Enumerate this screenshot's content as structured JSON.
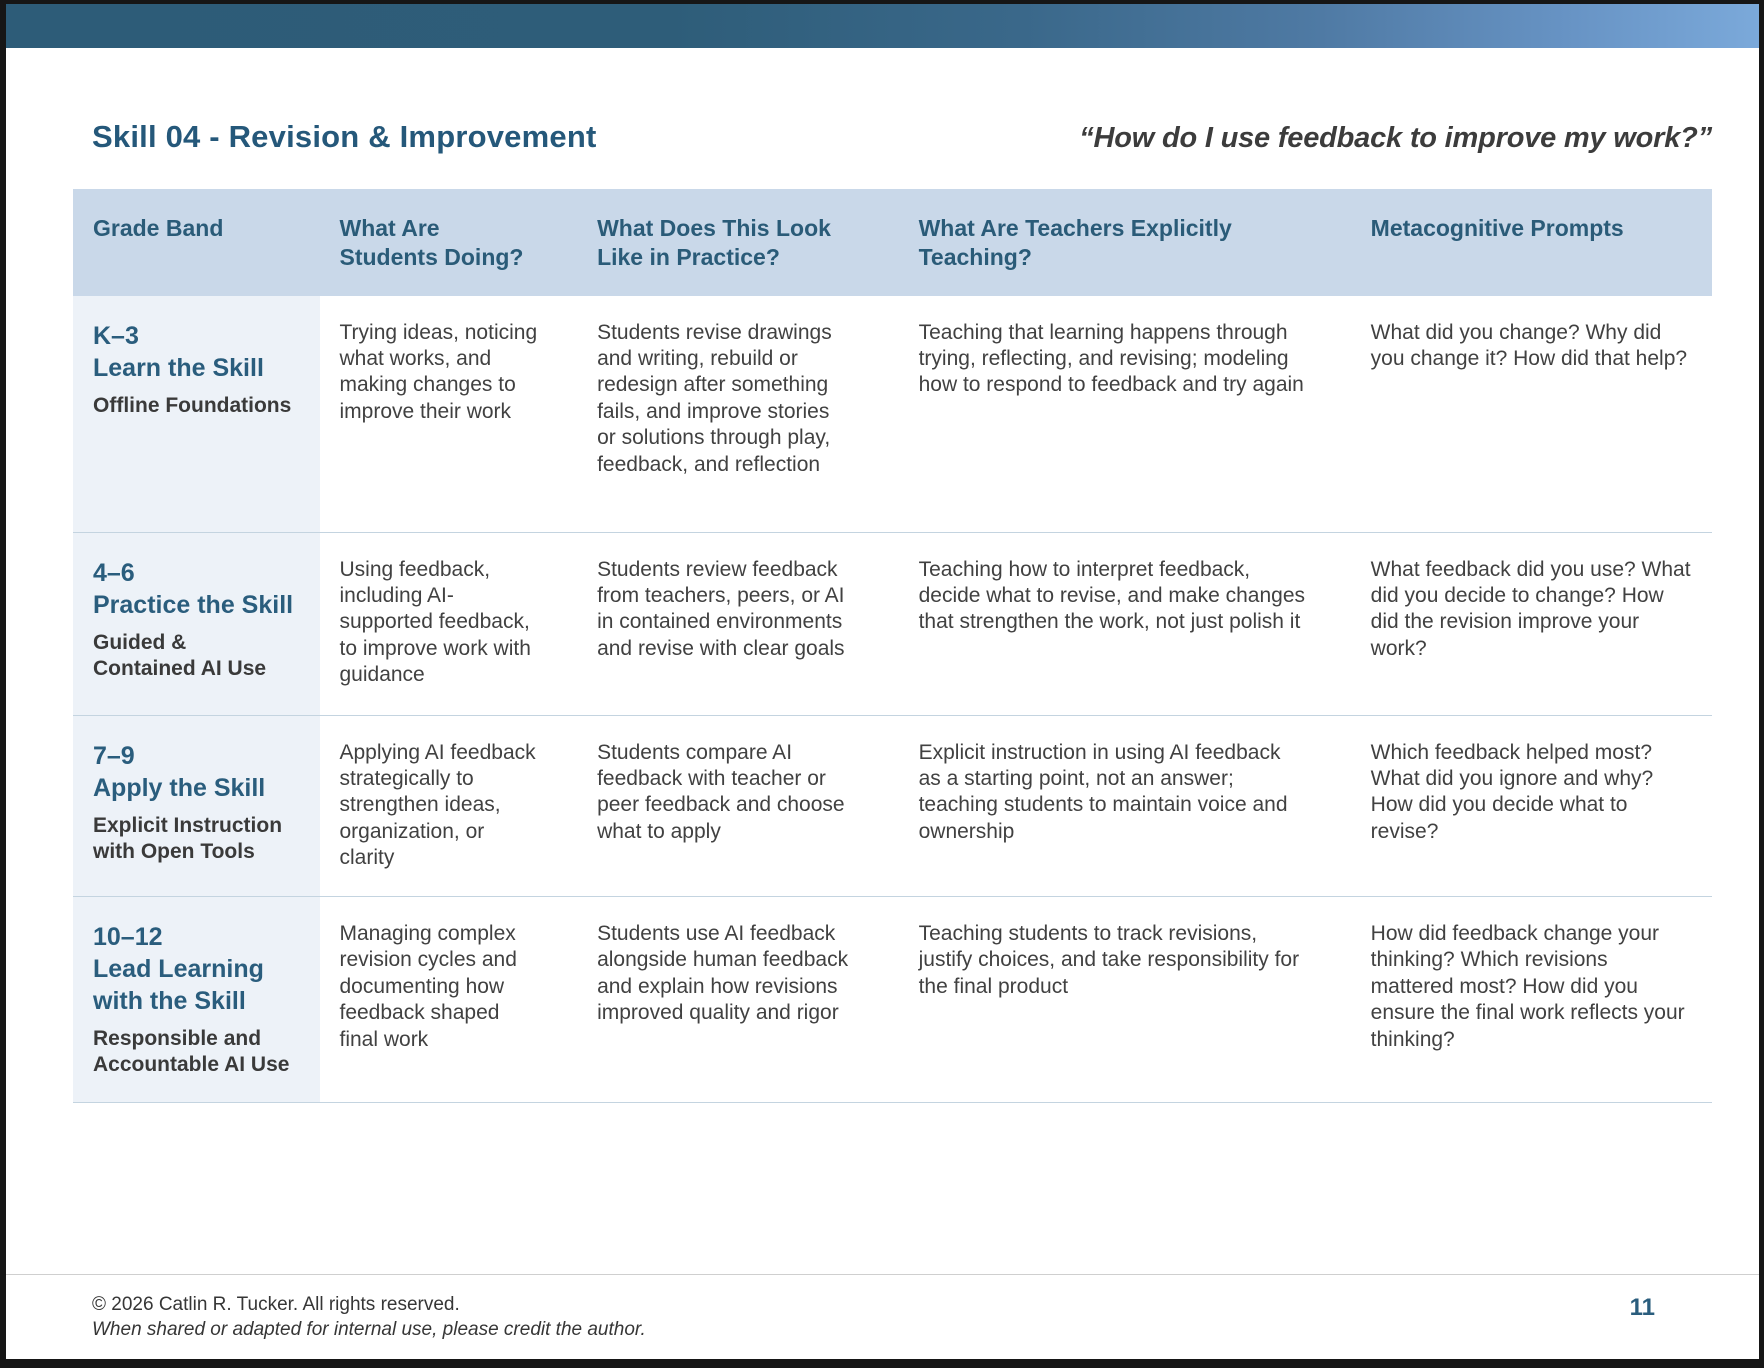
{
  "page": {
    "title": "Skill 04 - Revision & Improvement",
    "quote": "“How do I use feedback to improve my work?”",
    "page_number": "11",
    "footer": {
      "copyright": "© 2026 Catlin R. Tucker. All rights reserved.",
      "credit_note": "When shared or adapted for internal use, please credit the author."
    }
  },
  "colors": {
    "accent_teal": "#2a5d7d",
    "header_row_bg": "#c9d8e9",
    "grade_col_bg": "#edf2f8",
    "topbar_gradient_start": "#2d5c78",
    "topbar_gradient_end": "#7ba9da",
    "body_text": "#414141"
  },
  "table": {
    "columns": [
      "Grade Band",
      "What Are Students Doing?",
      "What Does This Look Like in Practice?",
      "What Are Teachers Explicitly Teaching?",
      "Metacognitive Prompts"
    ],
    "rows": [
      {
        "grade_band": "K–3",
        "stage": "Learn the Skill",
        "descriptor": "Offline Foundations",
        "students_doing": "Trying ideas, noticing what works, and making changes to improve their work",
        "in_practice": "Students revise drawings and writing, rebuild or redesign after something fails, and improve stories or solutions through play, feedback, and reflection",
        "teachers_teaching": "Teaching that learning happens through trying, reflecting, and revising; modeling how to respond to feedback and try again",
        "prompts": "What did you change? Why did you change it? How did that help?"
      },
      {
        "grade_band": "4–6",
        "stage": "Practice the Skill",
        "descriptor": "Guided & Contained AI Use",
        "students_doing": "Using feedback, including AI-supported feedback, to improve work with guidance",
        "in_practice": "Students review feedback from teachers, peers, or AI in contained environments and revise with clear goals",
        "teachers_teaching": "Teaching how to interpret feedback, decide what to revise, and make changes that strengthen the work, not just polish it",
        "prompts": "What feedback did you use? What did you decide to change? How did the revision improve your work?"
      },
      {
        "grade_band": "7–9",
        "stage": "Apply the Skill",
        "descriptor": "Explicit Instruction with Open Tools",
        "students_doing": "Applying AI feedback strategically to strengthen ideas, organization, or clarity",
        "in_practice": "Students compare AI feedback with teacher or peer feedback and choose what to apply",
        "teachers_teaching": "Explicit instruction in using AI feedback as a starting point, not an answer; teaching students to maintain voice and ownership",
        "prompts": "Which feedback helped most? What did you ignore and why? How did you decide what to revise?"
      },
      {
        "grade_band": "10–12",
        "stage": "Lead Learning with the Skill",
        "descriptor": "Responsible and Accountable AI Use",
        "students_doing": "Managing complex revision cycles and documenting how feedback shaped final work",
        "in_practice": "Students use AI feedback alongside human feedback and explain how revisions improved quality and rigor",
        "teachers_teaching": "Teaching students to track revisions, justify choices, and take responsibility for the final product",
        "prompts": "How did feedback change your thinking? Which revisions mattered most? How did you ensure the final work reflects your thinking?"
      }
    ]
  }
}
